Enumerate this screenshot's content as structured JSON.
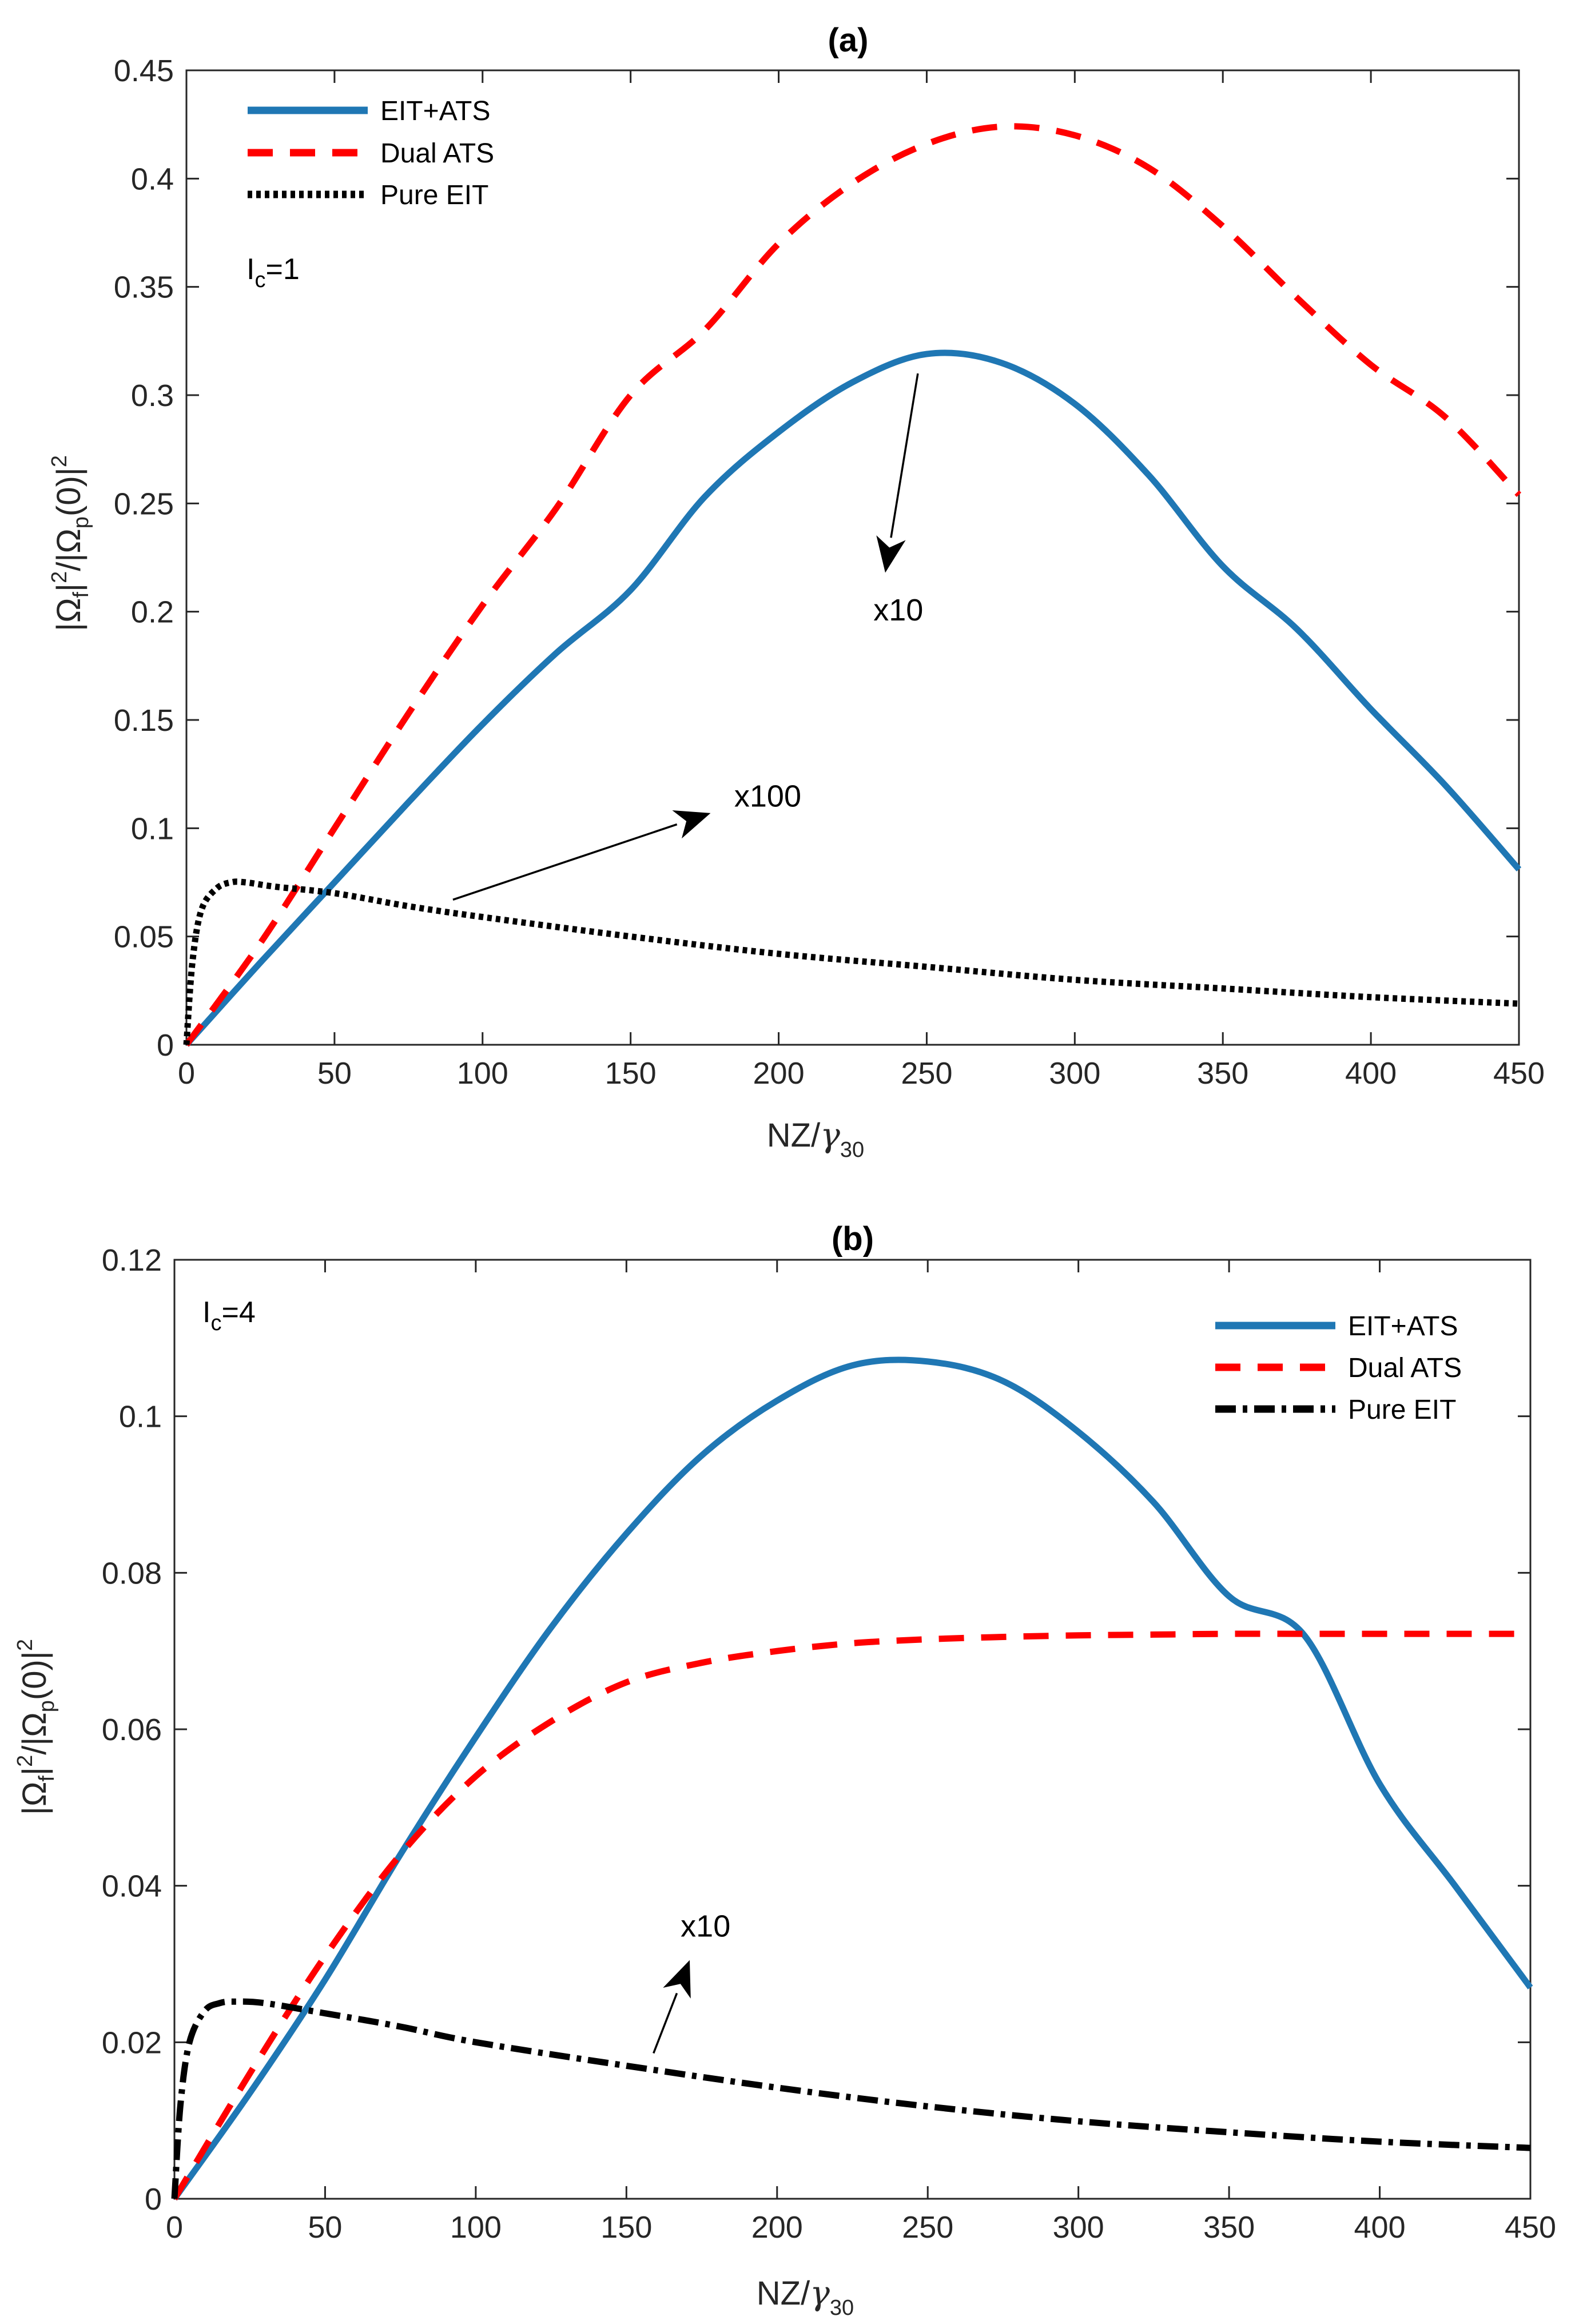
{
  "chart_data": [
    {
      "type": "line",
      "title": "(a)",
      "xlabel": {
        "main": "NZ/",
        "greek": "γ",
        "sub": "30"
      },
      "ylabel": {
        "p1": "|Ω",
        "s1": "f",
        "p2": "|",
        "e1": "2",
        "p3": "/|Ω",
        "s2": "p",
        "p4": "(0)|",
        "e2": "2"
      },
      "xlim": [
        0,
        450
      ],
      "ylim": [
        0,
        0.45
      ],
      "xticks": [
        "0",
        "50",
        "100",
        "150",
        "200",
        "250",
        "300",
        "350",
        "400",
        "450"
      ],
      "yticks": [
        "0",
        "0.05",
        "0.1",
        "0.15",
        "0.2",
        "0.25",
        "0.3",
        "0.35",
        "0.4",
        "0.45"
      ],
      "legend_position": "top-left",
      "param_label": {
        "main": "I",
        "sub": "c",
        "rest": "=1"
      },
      "series": [
        {
          "name": "EIT+ATS",
          "style": "solid",
          "color": "#1f77b4",
          "x": [
            0,
            25,
            50,
            75,
            100,
            125,
            150,
            175,
            200,
            225,
            250,
            275,
            300,
            325,
            350,
            375,
            400,
            425,
            450
          ],
          "y": [
            0,
            0.038,
            0.075,
            0.112,
            0.148,
            0.181,
            0.21,
            0.253,
            0.283,
            0.306,
            0.319,
            0.315,
            0.296,
            0.263,
            0.221,
            0.192,
            0.155,
            0.12,
            0.081
          ]
        },
        {
          "name": "Dual ATS",
          "style": "dashed",
          "color": "#ff0000",
          "x": [
            0,
            25,
            50,
            75,
            100,
            125,
            150,
            175,
            200,
            225,
            250,
            275,
            300,
            325,
            350,
            375,
            400,
            425,
            450
          ],
          "y": [
            0,
            0.047,
            0.1,
            0.153,
            0.203,
            0.248,
            0.3,
            0.33,
            0.37,
            0.398,
            0.416,
            0.424,
            0.42,
            0.405,
            0.378,
            0.345,
            0.314,
            0.29,
            0.254
          ]
        },
        {
          "name": "Pure EIT",
          "style": "dotted",
          "color": "#000000",
          "x": [
            0,
            2,
            5,
            10,
            15,
            20,
            30,
            50,
            75,
            100,
            150,
            200,
            250,
            300,
            350,
            400,
            450
          ],
          "y": [
            0,
            0.038,
            0.062,
            0.072,
            0.075,
            0.075,
            0.073,
            0.07,
            0.064,
            0.059,
            0.05,
            0.042,
            0.036,
            0.03,
            0.026,
            0.022,
            0.019
          ]
        }
      ],
      "annotations": [
        {
          "text": "x10",
          "x": 232,
          "y": 0.196,
          "tail": [
            247,
            0.31
          ],
          "head": [
            236,
            0.218
          ]
        },
        {
          "text": "x100",
          "x": 185,
          "y": 0.11,
          "tail": [
            90,
            0.067
          ],
          "head": [
            177,
            0.107
          ]
        }
      ]
    },
    {
      "type": "line",
      "title": "(b)",
      "xlabel": {
        "main": "NZ/",
        "greek": "γ",
        "sub": "30"
      },
      "ylabel": {
        "p1": "|Ω",
        "s1": "f",
        "p2": "|",
        "e1": "2",
        "p3": "/|Ω",
        "s2": "p",
        "p4": "(0)|",
        "e2": "2"
      },
      "xlim": [
        0,
        450
      ],
      "ylim": [
        0,
        0.12
      ],
      "xticks": [
        "0",
        "50",
        "100",
        "150",
        "200",
        "250",
        "300",
        "350",
        "400",
        "450"
      ],
      "yticks": [
        "0",
        "0.02",
        "0.04",
        "0.06",
        "0.08",
        "0.1",
        "0.12"
      ],
      "legend_position": "top-right",
      "param_label": {
        "main": "I",
        "sub": "c",
        "rest": "=4"
      },
      "series": [
        {
          "name": "EIT+ATS",
          "style": "solid",
          "color": "#1f77b4",
          "x": [
            0,
            25,
            50,
            75,
            100,
            125,
            150,
            175,
            200,
            225,
            250,
            275,
            300,
            325,
            350,
            375,
            400,
            425,
            450
          ],
          "y": [
            0,
            0.0135,
            0.028,
            0.044,
            0.059,
            0.073,
            0.085,
            0.095,
            0.102,
            0.1065,
            0.107,
            0.1045,
            0.098,
            0.089,
            0.077,
            0.072,
            0.053,
            0.04,
            0.027
          ]
        },
        {
          "name": "Dual ATS",
          "style": "dashed",
          "color": "#ff0000",
          "x": [
            0,
            25,
            50,
            75,
            100,
            125,
            150,
            175,
            200,
            225,
            250,
            275,
            300,
            325,
            350,
            375,
            400,
            425,
            450
          ],
          "y": [
            0,
            0.016,
            0.031,
            0.044,
            0.054,
            0.061,
            0.066,
            0.0685,
            0.07,
            0.071,
            0.0715,
            0.0718,
            0.072,
            0.0721,
            0.0722,
            0.0722,
            0.0722,
            0.0722,
            0.0722
          ]
        },
        {
          "name": "Pure EIT",
          "style": "dashdot",
          "color": "#000000",
          "x": [
            0,
            2,
            5,
            10,
            15,
            20,
            30,
            50,
            75,
            100,
            150,
            200,
            250,
            300,
            350,
            400,
            450
          ],
          "y": [
            0,
            0.012,
            0.02,
            0.024,
            0.025,
            0.0252,
            0.025,
            0.0237,
            0.022,
            0.02,
            0.017,
            0.0142,
            0.0118,
            0.0099,
            0.0085,
            0.0073,
            0.0065
          ]
        }
      ],
      "annotations": [
        {
          "text": "x10",
          "x": 168,
          "y": 0.0335,
          "tail": [
            159,
            0.0186
          ],
          "head": [
            171,
            0.0305
          ]
        }
      ]
    }
  ]
}
